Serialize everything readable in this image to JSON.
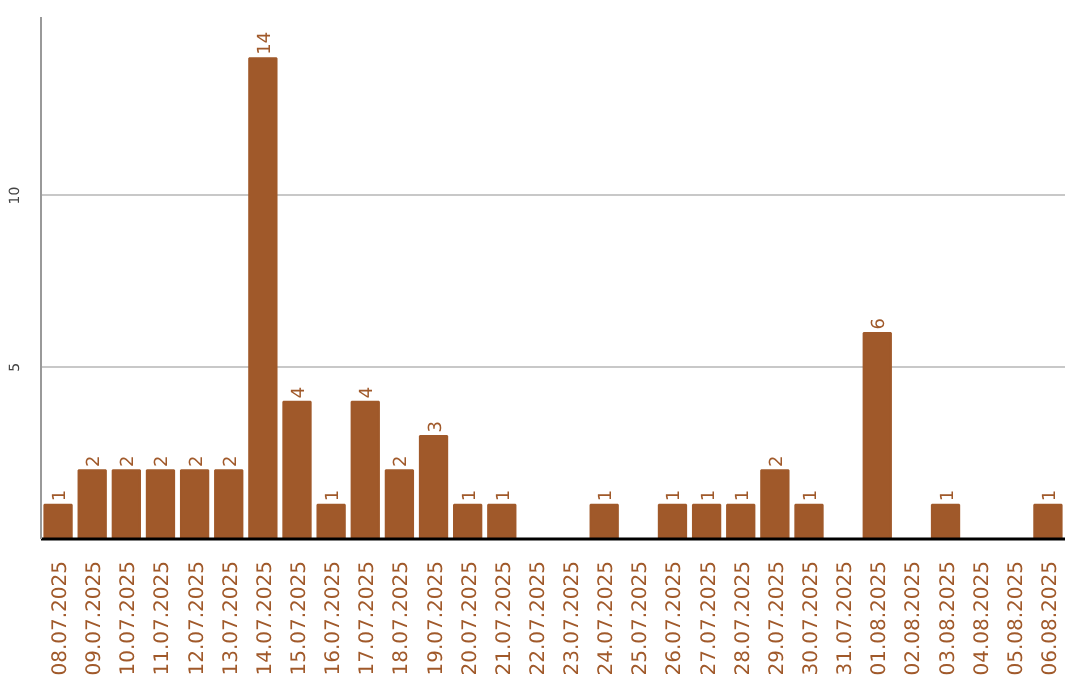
{
  "chart_data": {
    "type": "bar",
    "categories": [
      "08.07.2025",
      "09.07.2025",
      "10.07.2025",
      "11.07.2025",
      "12.07.2025",
      "13.07.2025",
      "14.07.2025",
      "15.07.2025",
      "16.07.2025",
      "17.07.2025",
      "18.07.2025",
      "19.07.2025",
      "20.07.2025",
      "21.07.2025",
      "22.07.2025",
      "23.07.2025",
      "24.07.2025",
      "25.07.2025",
      "26.07.2025",
      "27.07.2025",
      "28.07.2025",
      "29.07.2025",
      "30.07.2025",
      "31.07.2025",
      "01.08.2025",
      "02.08.2025",
      "03.08.2025",
      "04.08.2025",
      "05.08.2025",
      "06.08.2025"
    ],
    "values": [
      1,
      2,
      2,
      2,
      2,
      2,
      14,
      4,
      1,
      4,
      2,
      3,
      1,
      1,
      null,
      null,
      1,
      null,
      1,
      1,
      1,
      2,
      1,
      null,
      6,
      null,
      1,
      null,
      null,
      1
    ],
    "color": "#a0592a",
    "ylim": [
      0,
      15.2
    ],
    "yticks": [
      5,
      10
    ],
    "grid": "y",
    "data_labels": true
  }
}
